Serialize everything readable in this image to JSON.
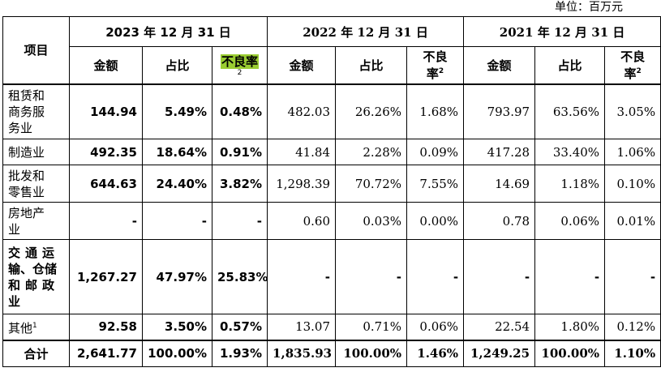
{
  "unit": "单位：百万元",
  "header": {
    "item": "项目",
    "period_2023": "2023 年 12 月 31 日",
    "period_2022": "2022 年 12 月 31 日",
    "period_2021": "2021 年 12 月 31 日",
    "amount": "金额",
    "ratio": "占比",
    "npl_rate": "不良率",
    "npl_rate_l1": "不良",
    "npl_rate_l2": "率",
    "sup2": "2"
  },
  "rows": [
    {
      "industry_l1": "租赁和",
      "industry_l2": "商务服",
      "industry_l3": "务业",
      "a23": "144.94",
      "r23": "5.49%",
      "n23": "0.48%",
      "a22": "482.03",
      "r22": "26.26%",
      "n22": "1.68%",
      "a21": "793.97",
      "r21": "63.56%",
      "n21": "3.05%"
    },
    {
      "industry_l1": "制造业",
      "a23": "492.35",
      "r23": "18.64%",
      "n23": "0.91%",
      "a22": "41.84",
      "r22": "2.28%",
      "n22": "0.09%",
      "a21": "417.28",
      "r21": "33.40%",
      "n21": "1.06%"
    },
    {
      "industry_l1": "批发和",
      "industry_l2": "零售业",
      "a23": "644.63",
      "r23": "24.40%",
      "n23": "3.82%",
      "a22": "1,298.39",
      "r22": "70.72%",
      "n22": "7.55%",
      "a21": "14.69",
      "r21": "1.18%",
      "n21": "0.10%"
    },
    {
      "industry_l1": "房地产",
      "industry_l2": "业",
      "a23": "-",
      "r23": "-",
      "n23": "-",
      "a22": "0.60",
      "r22": "0.03%",
      "n22": "0.00%",
      "a21": "0.78",
      "r21": "0.06%",
      "n21": "0.01%"
    },
    {
      "industry_l1": "交通运",
      "industry_l2": "输、仓储",
      "industry_l3": "和邮政",
      "industry_l4": "业",
      "a23": "1,267.27",
      "r23": "47.97%",
      "n23": "25.83%",
      "a22": "-",
      "r22": "-",
      "n22": "-",
      "a21": "-",
      "r21": "-",
      "n21": "-"
    },
    {
      "industry_l1": "其他",
      "sup": "1",
      "a23": "92.58",
      "r23": "3.50%",
      "n23": "0.57%",
      "a22": "13.07",
      "r22": "0.71%",
      "n22": "0.06%",
      "a21": "22.54",
      "r21": "1.80%",
      "n21": "0.12%"
    }
  ],
  "total": {
    "label": "合计",
    "a23": "2,641.77",
    "r23": "100.00%",
    "n23": "1.93%",
    "a22": "1,835.93",
    "r22": "100.00%",
    "n22": "1.46%",
    "a21": "1,249.25",
    "r21": "100.00%",
    "n21": "1.10%"
  },
  "colors": {
    "highlight": "#9acd32"
  }
}
